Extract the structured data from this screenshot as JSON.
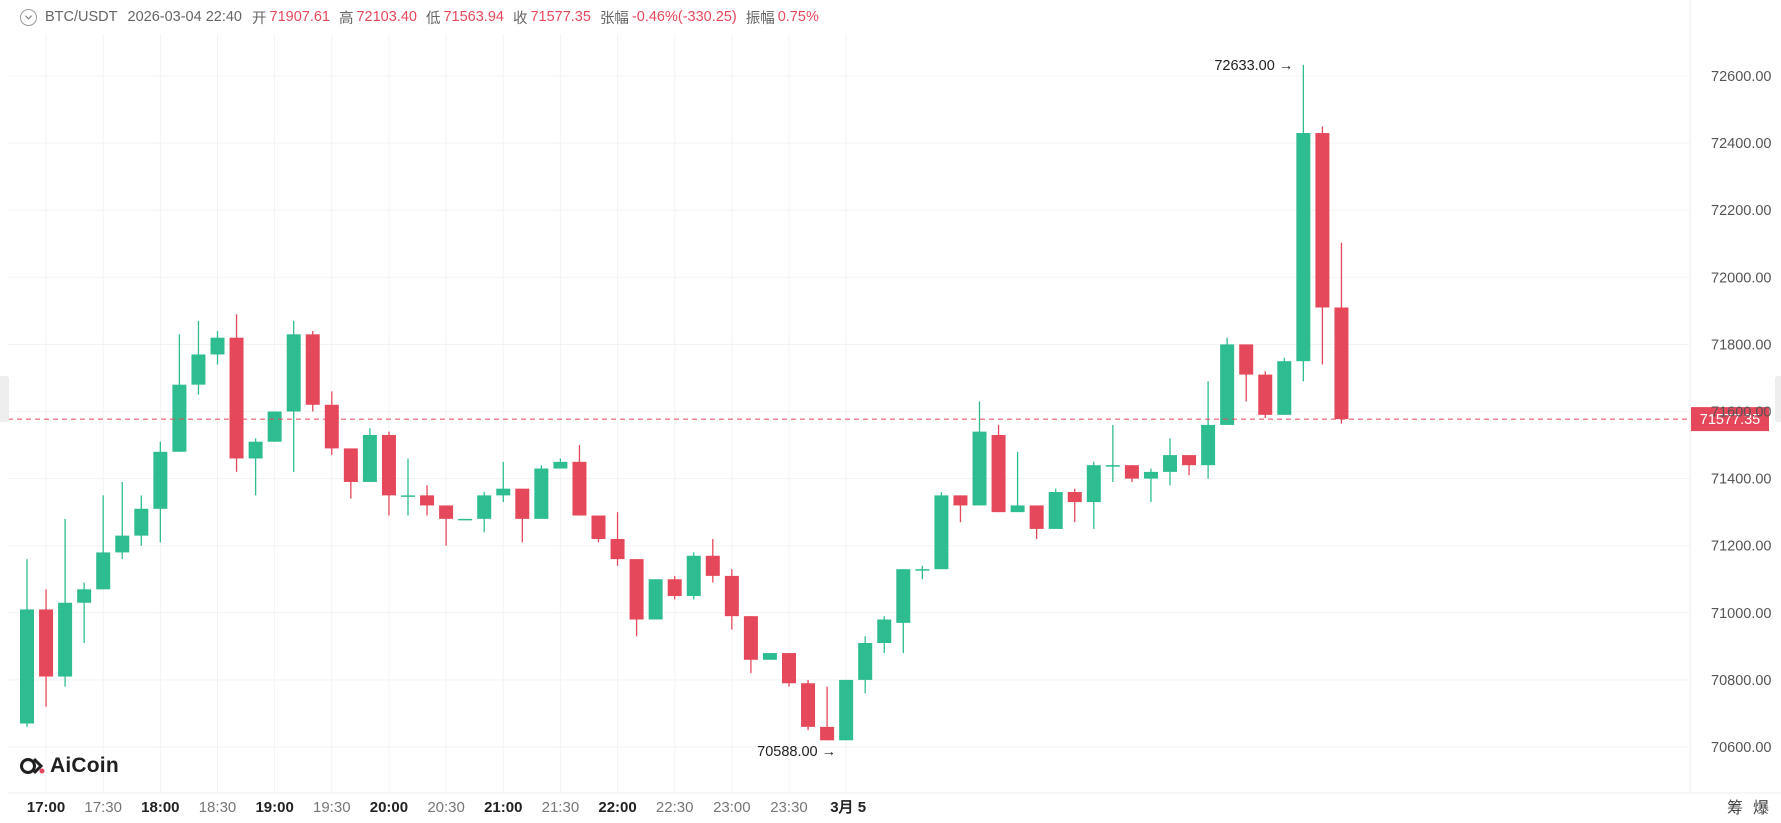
{
  "header": {
    "symbol": "BTC/USDT",
    "timestamp": "2026-03-04 22:40",
    "open_label": "开",
    "open_value": "71907.61",
    "high_label": "高",
    "high_value": "72103.40",
    "low_label": "低",
    "low_value": "71563.94",
    "close_label": "收",
    "close_value": "71577.35",
    "change_label": "张幅",
    "change_value": "-0.46%(-330.25)",
    "amplitude_label": "振幅",
    "amplitude_value": "0.75%"
  },
  "brand": {
    "name": "AiCoin",
    "icon": "aicoin-logo-icon"
  },
  "corner_buttons": [
    "筹",
    "爆"
  ],
  "colors": {
    "up": "#2ebd91",
    "down": "#e6485b",
    "price_line": "#e6485b",
    "grid": "#f3f3f3"
  },
  "chart_data": {
    "type": "candlestick",
    "interval_minutes": 10,
    "first_candle_time": "16:50",
    "candles": [
      [
        70670,
        71010,
        71160,
        70660
      ],
      [
        71010,
        70810,
        71070,
        70720
      ],
      [
        70810,
        71030,
        71280,
        70780
      ],
      [
        71030,
        71070,
        71090,
        70910
      ],
      [
        71070,
        71180,
        71350,
        71070
      ],
      [
        71180,
        71230,
        71390,
        71160
      ],
      [
        71230,
        71310,
        71350,
        71200
      ],
      [
        71310,
        71480,
        71510,
        71210
      ],
      [
        71480,
        71680,
        71830,
        71480
      ],
      [
        71680,
        71770,
        71870,
        71650
      ],
      [
        71770,
        71820,
        71840,
        71740
      ],
      [
        71820,
        71460,
        71890,
        71420
      ],
      [
        71460,
        71510,
        71520,
        71350
      ],
      [
        71510,
        71600,
        71600,
        71510
      ],
      [
        71600,
        71830,
        71870,
        71420
      ],
      [
        71830,
        71620,
        71840,
        71600
      ],
      [
        71620,
        71490,
        71660,
        71470
      ],
      [
        71490,
        71390,
        71490,
        71340
      ],
      [
        71390,
        71530,
        71550,
        71390
      ],
      [
        71530,
        71350,
        71540,
        71290
      ],
      [
        71350,
        71350,
        71460,
        71290
      ],
      [
        71350,
        71320,
        71380,
        71290
      ],
      [
        71320,
        71280,
        71320,
        71200
      ],
      [
        71280,
        71280,
        71280,
        71280
      ],
      [
        71280,
        71350,
        71360,
        71240
      ],
      [
        71350,
        71370,
        71450,
        71330
      ],
      [
        71370,
        71280,
        71370,
        71210
      ],
      [
        71280,
        71430,
        71440,
        71280
      ],
      [
        71430,
        71450,
        71460,
        71430
      ],
      [
        71450,
        71290,
        71500,
        71290
      ],
      [
        71290,
        71220,
        71290,
        71210
      ],
      [
        71220,
        71160,
        71300,
        71140
      ],
      [
        71160,
        70980,
        71160,
        70930
      ],
      [
        70980,
        71100,
        71100,
        70980
      ],
      [
        71100,
        71050,
        71110,
        71040
      ],
      [
        71050,
        71170,
        71180,
        71040
      ],
      [
        71170,
        71110,
        71220,
        71090
      ],
      [
        71110,
        70990,
        71130,
        70950
      ],
      [
        70990,
        70860,
        70990,
        70820
      ],
      [
        70860,
        70880,
        70880,
        70860
      ],
      [
        70880,
        70790,
        70880,
        70780
      ],
      [
        70790,
        70660,
        70800,
        70650
      ],
      [
        70660,
        70620,
        70780,
        70620
      ],
      [
        70620,
        70800,
        70800,
        70620
      ],
      [
        70800,
        70910,
        70930,
        70760
      ],
      [
        70910,
        70980,
        70990,
        70880
      ],
      [
        70970,
        71130,
        71130,
        70880
      ],
      [
        71130,
        71130,
        71140,
        71100
      ],
      [
        71130,
        71350,
        71360,
        71130
      ],
      [
        71350,
        71320,
        71350,
        71270
      ],
      [
        71320,
        71540,
        71630,
        71320
      ],
      [
        71530,
        71300,
        71560,
        71300
      ],
      [
        71300,
        71320,
        71480,
        71300
      ],
      [
        71320,
        71250,
        71320,
        71220
      ],
      [
        71250,
        71360,
        71370,
        71250
      ],
      [
        71360,
        71330,
        71370,
        71270
      ],
      [
        71330,
        71440,
        71450,
        71250
      ],
      [
        71440,
        71440,
        71560,
        71390
      ],
      [
        71440,
        71400,
        71440,
        71390
      ],
      [
        71400,
        71420,
        71430,
        71330
      ],
      [
        71420,
        71470,
        71520,
        71380
      ],
      [
        71470,
        71440,
        71470,
        71410
      ],
      [
        71440,
        71560,
        71690,
        71400
      ],
      [
        71560,
        71800,
        71820,
        71560
      ],
      [
        71800,
        71710,
        71800,
        71630
      ],
      [
        71710,
        71590,
        71720,
        71580
      ],
      [
        71590,
        71750,
        71760,
        71590
      ],
      [
        71750,
        72430,
        72633,
        71690
      ],
      [
        72430,
        71910,
        72450,
        71740
      ],
      [
        71910,
        71577.35,
        72103.4,
        71563.94
      ]
    ],
    "y_axis": {
      "min": 70500,
      "max": 72700,
      "ticks": [
        70600,
        70800,
        71000,
        71200,
        71400,
        71600,
        71800,
        72000,
        72200,
        72400,
        72600
      ]
    },
    "x_axis": {
      "labels": [
        "17:00",
        "17:30",
        "18:00",
        "18:30",
        "19:00",
        "19:30",
        "20:00",
        "20:30",
        "21:00",
        "21:30",
        "22:00",
        "22:30",
        "23:00",
        "23:30",
        "3月 5"
      ],
      "bold": [
        "17:00",
        "18:00",
        "19:00",
        "20:00",
        "21:00",
        "22:00",
        "3月 5"
      ]
    },
    "current_price": "71577.35",
    "annotations": [
      {
        "text": "72633.00",
        "value": 72633,
        "candle_index": 67,
        "arrow": "→"
      },
      {
        "text": "70588.00",
        "value": 70588,
        "candle_index": 43,
        "arrow": "→"
      }
    ],
    "grid": true
  }
}
